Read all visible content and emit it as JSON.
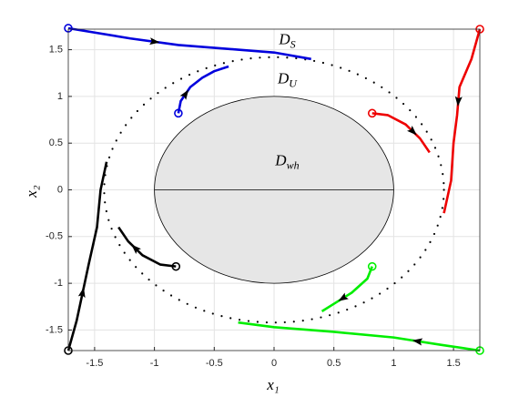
{
  "chart_data": {
    "type": "line",
    "xlabel": "x₁",
    "ylabel": "x₂",
    "xlim": [
      -1.72,
      1.72
    ],
    "ylim": [
      -1.72,
      1.72
    ],
    "xticks": [
      -1.5,
      -1,
      -0.5,
      0,
      0.5,
      1,
      1.5
    ],
    "yticks": [
      -1.5,
      -1,
      -0.5,
      0,
      0.5,
      1,
      1.5
    ],
    "grid": true,
    "regions": [
      {
        "shape": "circle",
        "radius": 1.42,
        "style": "dotted",
        "color": "#000000"
      },
      {
        "shape": "circle",
        "radius": 1,
        "style": "filled",
        "color": "#e6e6e6"
      }
    ],
    "annotations": [
      {
        "text": "D",
        "sub": "S",
        "x": 0.11,
        "y": 1.6
      },
      {
        "text": "D",
        "sub": "U",
        "x": 0.11,
        "y": 1.18
      },
      {
        "text": "D",
        "sub": "wh",
        "x": 0.11,
        "y": 0.3
      }
    ],
    "series": [
      {
        "color": "#0000dd",
        "x": [
          -1.72,
          -1.2,
          -0.8,
          -0.3,
          0,
          0.31
        ],
        "y": [
          1.73,
          1.62,
          1.55,
          1.5,
          1.47,
          1.4
        ]
      },
      {
        "color": "#0000dd",
        "x": [
          -0.8,
          -0.78,
          -0.7,
          -0.6,
          -0.5,
          -0.38
        ],
        "y": [
          0.82,
          0.95,
          1.1,
          1.2,
          1.27,
          1.32
        ]
      },
      {
        "color": "#ee0000",
        "x": [
          1.72,
          1.65,
          1.55,
          1.53,
          1.5,
          1.48,
          1.42
        ],
        "y": [
          1.72,
          1.4,
          1.1,
          0.8,
          0.5,
          0.1,
          -0.25
        ]
      },
      {
        "color": "#ee0000",
        "x": [
          0.82,
          0.95,
          1.1,
          1.22,
          1.3
        ],
        "y": [
          0.82,
          0.8,
          0.7,
          0.55,
          0.4
        ]
      },
      {
        "color": "#00ee00",
        "x": [
          1.72,
          1.4,
          1.0,
          0.5,
          0,
          -0.3
        ],
        "y": [
          -1.72,
          -1.66,
          -1.58,
          -1.52,
          -1.47,
          -1.42
        ]
      },
      {
        "color": "#00ee00",
        "x": [
          0.82,
          0.78,
          0.65,
          0.5,
          0.4
        ],
        "y": [
          -0.82,
          -0.95,
          -1.1,
          -1.22,
          -1.3
        ]
      },
      {
        "color": "#000000",
        "x": [
          -1.72,
          -1.65,
          -1.55,
          -1.48,
          -1.45,
          -1.4
        ],
        "y": [
          -1.72,
          -1.4,
          -0.8,
          -0.4,
          0,
          0.3
        ]
      },
      {
        "color": "#000000",
        "x": [
          -0.82,
          -0.95,
          -1.1,
          -1.22,
          -1.3
        ],
        "y": [
          -0.82,
          -0.8,
          -0.7,
          -0.55,
          -0.4
        ]
      }
    ]
  }
}
